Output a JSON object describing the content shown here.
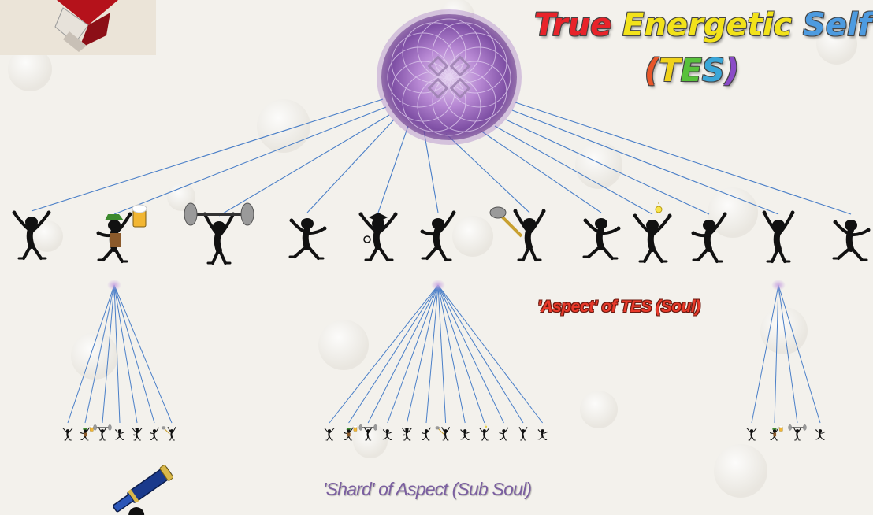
{
  "title": {
    "line1_words": [
      {
        "text": "True",
        "color": "#e8232a"
      },
      {
        "text": "Energetic",
        "color": "#f2e21a"
      },
      {
        "text": "Self",
        "color": "#4d9be0"
      }
    ],
    "line2": [
      {
        "text": "(",
        "color": "#e8562a"
      },
      {
        "text": "T",
        "color": "#f0d21a"
      },
      {
        "text": "E",
        "color": "#58c13b"
      },
      {
        "text": "S",
        "color": "#3aa6d8"
      },
      {
        "text": ")",
        "color": "#8a4bc7"
      }
    ]
  },
  "center_orb": {
    "icon": "energy-orb-icon",
    "color": "#a877cc"
  },
  "aspects": {
    "icons": [
      "dancer-icon",
      "beer-drinker-icon",
      "weightlifter-icon",
      "dancer-icon",
      "graduate-icon",
      "dancer-icon",
      "cleaner-icon",
      "dancer-icon",
      "idea-icon",
      "dancer-icon",
      "dancer-icon",
      "dancer-icon"
    ],
    "caption": "'Aspect' of TES (Soul)"
  },
  "shards": {
    "groups": [
      {
        "parent_aspect": 2,
        "count": 7
      },
      {
        "parent_aspect": 6,
        "count": 12
      },
      {
        "parent_aspect": 11,
        "count": 4
      }
    ],
    "caption": "'Shard' of Aspect (Sub Soul)"
  },
  "colors": {
    "connector": "#4a7fc8",
    "figure": "#111111"
  }
}
